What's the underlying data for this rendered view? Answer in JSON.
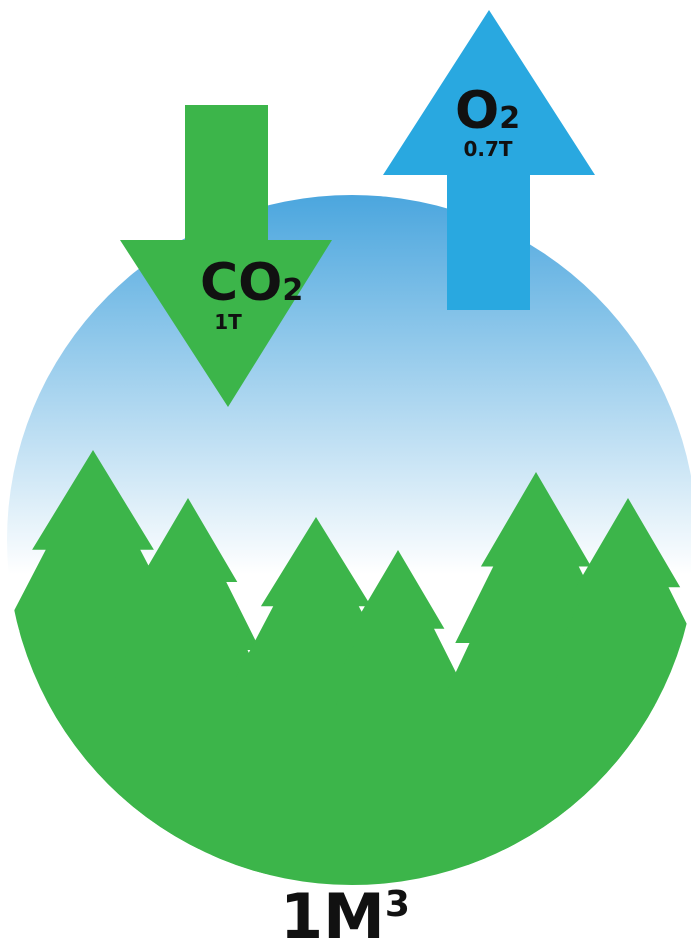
{
  "arrows": {
    "co2": {
      "main": "CO",
      "sub": "2",
      "amount": "1T"
    },
    "o2": {
      "main": "O",
      "sub": "2",
      "amount": "0.7T"
    }
  },
  "footer": {
    "main": "1M",
    "sup": "3"
  }
}
